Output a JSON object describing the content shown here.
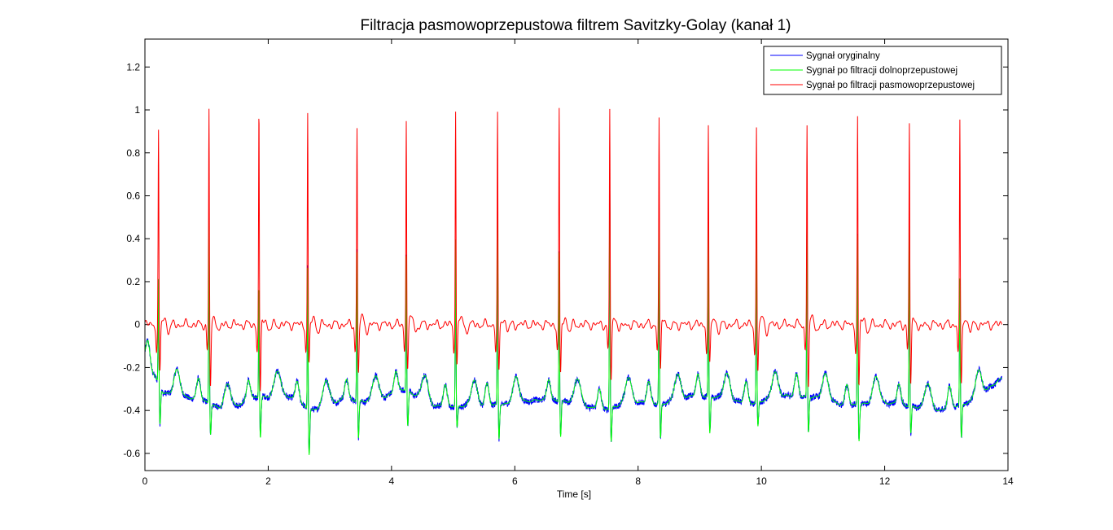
{
  "chart_data": {
    "type": "line",
    "title": "Filtracja pasmowoprzepustowa filtrem Savitzky-Golay (kanał 1)",
    "xlabel": "Time [s]",
    "ylabel": "",
    "xlim": [
      0,
      14
    ],
    "ylim": [
      -0.68,
      1.33
    ],
    "xticks": [
      0,
      2,
      4,
      6,
      8,
      10,
      12,
      14
    ],
    "xtick_labels": [
      "0",
      "2",
      "4",
      "6",
      "8",
      "10",
      "12",
      "14"
    ],
    "yticks": [
      -0.6,
      -0.4,
      -0.2,
      0,
      0.2,
      0.4,
      0.6,
      0.8,
      1.0,
      1.2
    ],
    "ytick_labels": [
      "-0.6",
      "-0.4",
      "-0.2",
      "0",
      "0.2",
      "0.4",
      "0.6",
      "0.8",
      "1",
      "1.2"
    ],
    "grid": false,
    "legend_position": "top-right",
    "beats": {
      "t": [
        0.22,
        1.04,
        1.85,
        2.64,
        3.44,
        4.24,
        5.04,
        5.72,
        6.72,
        7.54,
        8.34,
        9.14,
        9.92,
        10.74,
        11.56,
        12.4,
        13.22
      ],
      "bandpass_peak": [
        0.91,
        1.03,
        1.03,
        1.0,
        0.93,
        0.98,
        1.03,
        0.99,
        1.02,
        1.02,
        0.99,
        0.93,
        0.93,
        0.97,
        0.99,
        0.96,
        0.96
      ],
      "bandpass_trough": [
        -0.23,
        -0.3,
        -0.33,
        -0.2,
        -0.23,
        -0.2,
        -0.2,
        -0.23,
        -0.25,
        -0.26,
        -0.23,
        -0.2,
        -0.23,
        -0.3,
        -0.3,
        -0.28,
        -0.3
      ],
      "raw_peak": [
        0.22,
        0.5,
        0.2,
        0.28,
        0.35,
        0.33,
        0.4,
        0.6,
        0.35,
        0.72,
        0.58,
        0.48,
        0.5,
        0.57,
        0.43,
        0.5,
        0.22
      ],
      "raw_trough": [
        -0.48,
        -0.53,
        -0.56,
        -0.64,
        -0.56,
        -0.5,
        -0.5,
        -0.56,
        -0.55,
        -0.58,
        -0.56,
        -0.54,
        -0.5,
        -0.53,
        -0.57,
        -0.53,
        -0.56
      ]
    },
    "series": [
      {
        "name": "Sygnał oryginalny",
        "color": "#0000ff",
        "baseline_t": [
          0,
          0.3,
          0.9,
          1.3,
          1.8,
          2.3,
          2.7,
          3.2,
          3.7,
          4.2,
          4.7,
          5.3,
          5.9,
          6.4,
          6.9,
          7.4,
          7.9,
          8.4,
          8.9,
          9.3,
          9.8,
          10.4,
          10.9,
          11.4,
          11.9,
          12.4,
          12.9,
          13.4,
          13.9
        ],
        "baseline_v": [
          -0.15,
          -0.32,
          -0.35,
          -0.4,
          -0.34,
          -0.33,
          -0.4,
          -0.35,
          -0.36,
          -0.3,
          -0.38,
          -0.38,
          -0.37,
          -0.35,
          -0.36,
          -0.4,
          -0.36,
          -0.37,
          -0.33,
          -0.34,
          -0.37,
          -0.33,
          -0.34,
          -0.38,
          -0.36,
          -0.38,
          -0.4,
          -0.36,
          -0.25
        ]
      },
      {
        "name": "Sygnał po filtracji dolnoprzepustowej",
        "color": "#00ff00"
      },
      {
        "name": "Sygnał po filtracji pasmowoprzepustowej",
        "color": "#ff0000"
      }
    ]
  },
  "legend": {
    "items": [
      {
        "label": "Sygnał oryginalny",
        "color": "#0000ff"
      },
      {
        "label": "Sygnał po filtracji dolnoprzepustowej",
        "color": "#00ff00"
      },
      {
        "label": "Sygnał po filtracji pasmowoprzepustowej",
        "color": "#ff0000"
      }
    ]
  }
}
